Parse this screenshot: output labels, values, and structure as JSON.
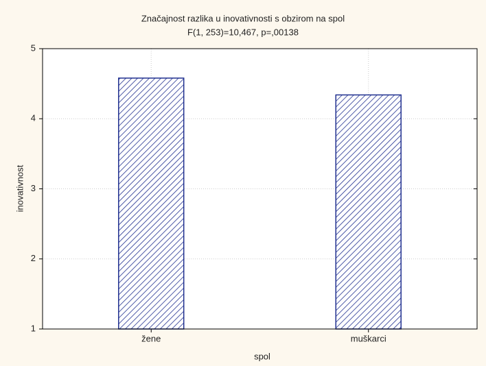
{
  "chart_data": {
    "type": "bar",
    "title": "Značajnost razlika u inovativnosti s obzirom na spol",
    "subtitle": "F(1, 253)=10,467, p=,00138",
    "x_label": "spol",
    "y_label": "inovativnost",
    "categories": [
      "žene",
      "muškarci"
    ],
    "values": [
      4.58,
      4.34
    ],
    "color": "#1f2f8f",
    "ylim": [
      1,
      5
    ],
    "yticks": [
      1,
      2,
      3,
      4,
      5
    ],
    "grid": true
  }
}
